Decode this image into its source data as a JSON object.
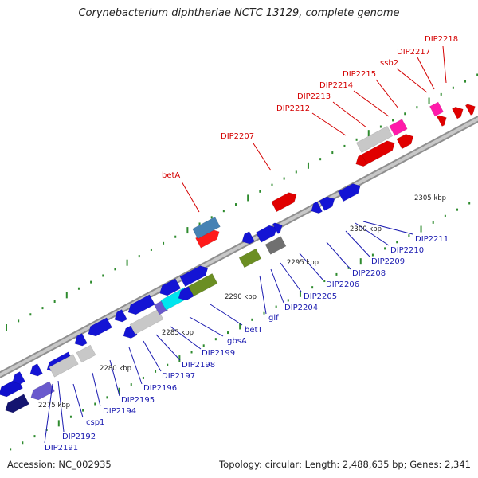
{
  "title": "Corynebacterium diphtheriae NCTC 13129, complete genome",
  "footer": {
    "accession": "Accession: NC_002935",
    "topology": "Topology: circular; Length: 2,488,635 bp; Genes: 2,341"
  },
  "colors": {
    "backbone": "#a8a8a8",
    "tick": "#2e8b2e",
    "red_label": "#d40000",
    "blue_label": "#1a1ab0"
  },
  "scale_labels": [
    "2275 kbp",
    "2280 kbp",
    "2285 kbp",
    "2290 kbp",
    "2295 kbp",
    "2300 kbp",
    "2305 kbp"
  ],
  "upper_labels": [
    "betA",
    "DIP2207",
    "DIP2212",
    "DIP2213",
    "DIP2214",
    "DIP2215",
    "ssb2",
    "DIP2217",
    "DIP2218"
  ],
  "lower_labels": [
    "DIP2191",
    "DIP2192",
    "csp1",
    "DIP2194",
    "DIP2195",
    "DIP2196",
    "DIP2197",
    "DIP2198",
    "DIP2199",
    "gbsA",
    "betT",
    "glf",
    "DIP2204",
    "DIP2205",
    "DIP2206",
    "DIP2208",
    "DIP2209",
    "DIP2210",
    "DIP2211"
  ]
}
